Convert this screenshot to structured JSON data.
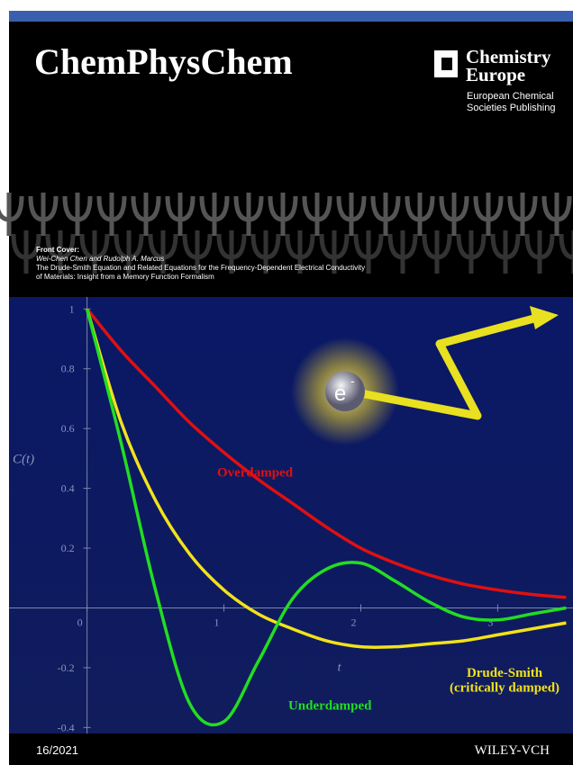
{
  "header": {
    "journal": "ChemPhysChem",
    "publisher_line1": "Chemistry",
    "publisher_line2": "Europe",
    "publisher_sub1": "European Chemical",
    "publisher_sub2": "Societies Publishing"
  },
  "front_cover": {
    "label": "Front Cover:",
    "authors": "Wei-Chen Chen and Rudolph A. Marcus",
    "title_line1": "The Drude-Smith Equation and Related Equations for the Frequency-Dependent Electrical Conductivity",
    "title_line2": "of Materials: Insight from a Memory Function Formalism"
  },
  "chart_data": {
    "type": "line",
    "ylabel": "C(t)",
    "xlabel": "t",
    "x": [
      0,
      0.25,
      0.5,
      0.75,
      1,
      1.25,
      1.5,
      1.75,
      2,
      2.25,
      2.5,
      2.75,
      3,
      3.25,
      3.5
    ],
    "series": [
      {
        "name": "Overdamped",
        "color": "#e01010",
        "values": [
          1,
          0.86,
          0.74,
          0.62,
          0.52,
          0.43,
          0.35,
          0.27,
          0.2,
          0.15,
          0.11,
          0.08,
          0.06,
          0.045,
          0.035
        ]
      },
      {
        "name": "Drude-Smith",
        "color": "#f2e21a",
        "values": [
          1,
          0.62,
          0.36,
          0.18,
          0.06,
          -0.02,
          -0.07,
          -0.11,
          -0.13,
          -0.13,
          -0.12,
          -0.11,
          -0.09,
          -0.07,
          -0.05
        ]
      },
      {
        "name": "Underdamped",
        "color": "#22dd22",
        "values": [
          1,
          0.55,
          0.06,
          -0.32,
          -0.38,
          -0.18,
          0.03,
          0.13,
          0.15,
          0.09,
          0.02,
          -0.03,
          -0.04,
          -0.02,
          0
        ]
      }
    ],
    "annotations": [
      "Overdamped",
      "Drude-Smith",
      "(critically damped)",
      "Underdamped"
    ],
    "xlim": [
      -0.57,
      3.55
    ],
    "ylim": [
      -0.42,
      1.04
    ],
    "xticks": [
      0,
      1,
      2,
      3
    ],
    "yticks": [
      -0.4,
      -0.2,
      0.2,
      0.4,
      0.6,
      0.8,
      1
    ],
    "electron_label": "e",
    "electron_charge": "-"
  },
  "footer": {
    "issue": "16/2021",
    "publisher": "WILEY-VCH"
  }
}
